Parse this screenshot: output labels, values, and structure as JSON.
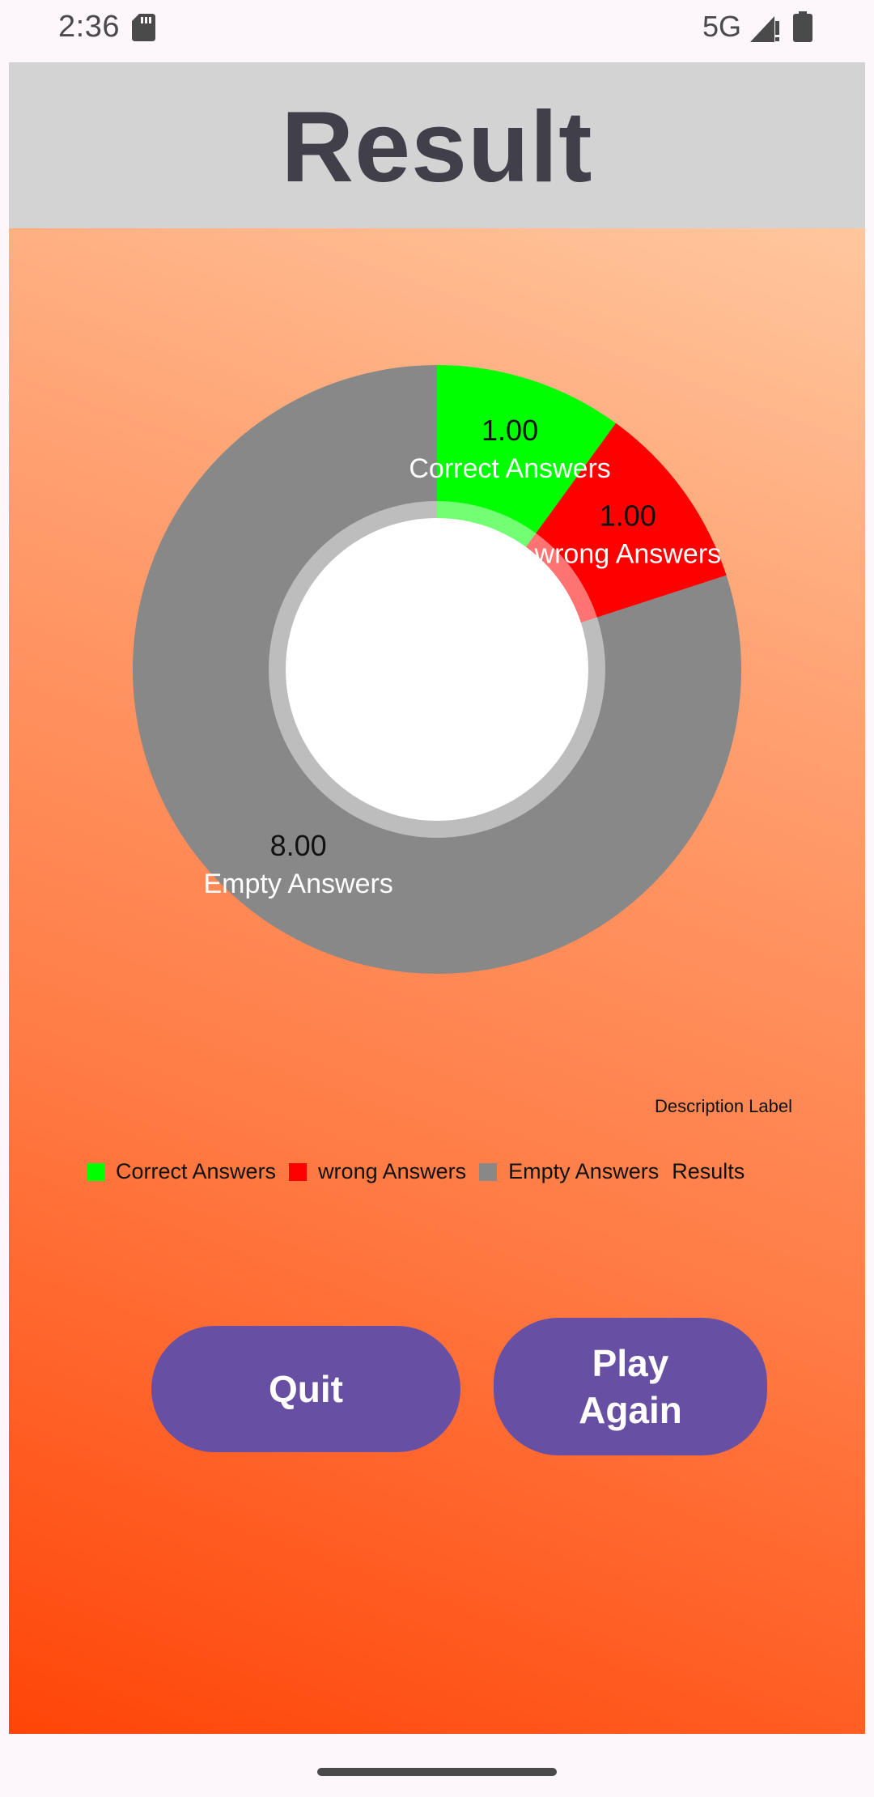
{
  "status_bar": {
    "time": "2:36",
    "network": "5G",
    "icons": [
      "sd-card-icon",
      "signal-icon",
      "battery-icon"
    ]
  },
  "header": {
    "title": "Result"
  },
  "chart": {
    "description_label": "Description Label",
    "legend_title": "Results"
  },
  "chart_data": {
    "type": "pie",
    "style": "donut",
    "categories": [
      "Correct Answers",
      "wrong Answers",
      "Empty Answers"
    ],
    "values": [
      1,
      1,
      8
    ],
    "value_labels": [
      "1.00",
      "1.00",
      "8.00"
    ],
    "colors": [
      "#00FF00",
      "#FF0000",
      "#888888"
    ],
    "legend": {
      "entries": [
        "Correct Answers",
        "wrong Answers",
        "Empty Answers"
      ],
      "title": "Results",
      "placement": "bottom-left"
    },
    "description": "Description Label"
  },
  "buttons": {
    "quit_label": "Quit",
    "play_again_label": "Play Again"
  },
  "colors": {
    "header_bg": "#D3D3D3",
    "title_text": "#41404A",
    "button_bg": "#6750A4",
    "gradient_top": "#FFC79E",
    "gradient_bottom": "#FF4508"
  }
}
